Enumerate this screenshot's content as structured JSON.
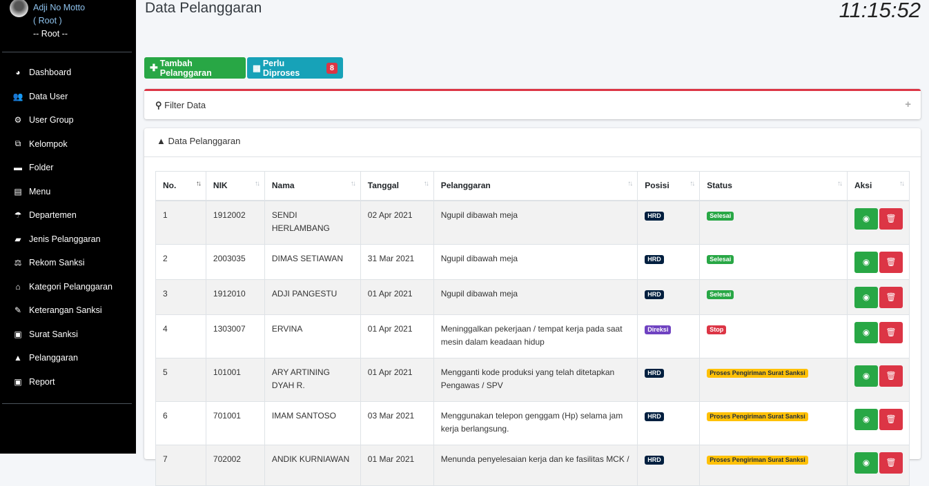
{
  "user": {
    "name": "Adji No Motto",
    "role": "( Root )",
    "group": "-- Root --"
  },
  "sidebar": {
    "items": [
      {
        "label": "Dashboard",
        "icon": "tachometer-icon",
        "glyph": "◕"
      },
      {
        "label": "Data User",
        "icon": "users-icon",
        "glyph": "👥"
      },
      {
        "label": "User Group",
        "icon": "gear-icon",
        "glyph": "⚙"
      },
      {
        "label": "Kelompok",
        "icon": "sitemap-icon",
        "glyph": "⧉"
      },
      {
        "label": "Folder",
        "icon": "folder-icon",
        "glyph": "▬"
      },
      {
        "label": "Menu",
        "icon": "menu-icon",
        "glyph": "▤"
      },
      {
        "label": "Departemen",
        "icon": "umbrella-icon",
        "glyph": "☂"
      },
      {
        "label": "Jenis Pelanggaran",
        "icon": "briefcase-icon",
        "glyph": "▰"
      },
      {
        "label": "Rekom Sanksi",
        "icon": "balance-scale-icon",
        "glyph": "⚖"
      },
      {
        "label": "Kategori Pelanggaran",
        "icon": "home-icon",
        "glyph": "⌂"
      },
      {
        "label": "Keterangan Sanksi",
        "icon": "edit-icon",
        "glyph": "✎"
      },
      {
        "label": "Surat Sanksi",
        "icon": "id-card-icon",
        "glyph": "▣"
      },
      {
        "label": "Pelanggaran",
        "icon": "warning-icon",
        "glyph": "▲"
      },
      {
        "label": "Report",
        "icon": "report-icon",
        "glyph": "▣"
      }
    ]
  },
  "header": {
    "title": "Data Pelanggaran",
    "clock": "11:15:52"
  },
  "toolbar": {
    "add_label": "Tambah Pelanggaran",
    "process_label": "Perlu Diproses",
    "process_count": "8"
  },
  "filter": {
    "title": "Filter Data"
  },
  "table": {
    "title": "Data Pelanggaran",
    "columns": [
      "No.",
      "NIK",
      "Nama",
      "Tanggal",
      "Pelanggaran",
      "Posisi",
      "Status",
      "Aksi"
    ],
    "rows": [
      {
        "no": "1",
        "nik": "1912002",
        "nama": "SENDI HERLAMBANG",
        "tanggal": "02 Apr 2021",
        "pelanggaran": "Ngupil dibawah meja",
        "posisi": "HRD",
        "status": "Selesai"
      },
      {
        "no": "2",
        "nik": "2003035",
        "nama": "DIMAS SETIAWAN",
        "tanggal": "31 Mar 2021",
        "pelanggaran": "Ngupil dibawah meja",
        "posisi": "HRD",
        "status": "Selesai"
      },
      {
        "no": "3",
        "nik": "1912010",
        "nama": "ADJI PANGESTU",
        "tanggal": "01 Apr 2021",
        "pelanggaran": "Ngupil dibawah meja",
        "posisi": "HRD",
        "status": "Selesai"
      },
      {
        "no": "4",
        "nik": "1303007",
        "nama": "ERVINA",
        "tanggal": "01 Apr 2021",
        "pelanggaran": "Meninggalkan pekerjaan / tempat kerja pada saat mesin dalam keadaan hidup",
        "posisi": "Direksi",
        "status": "Stop"
      },
      {
        "no": "5",
        "nik": "101001",
        "nama": "ARY ARTINING DYAH R.",
        "tanggal": "01 Apr 2021",
        "pelanggaran": "Mengganti kode produksi yang telah ditetapkan Pengawas / SPV",
        "posisi": "HRD",
        "status": "Proses Pengiriman Surat Sanksi"
      },
      {
        "no": "6",
        "nik": "701001",
        "nama": "IMAM SANTOSO",
        "tanggal": "03 Mar 2021",
        "pelanggaran": "Menggunakan telepon genggam (Hp) selama jam kerja berlangsung.",
        "posisi": "HRD",
        "status": "Proses Pengiriman Surat Sanksi"
      },
      {
        "no": "7",
        "nik": "702002",
        "nama": "ANDIK KURNIAWAN",
        "tanggal": "01 Mar 2021",
        "pelanggaran": "Menunda penyelesaian kerja dan ke fasilitas MCK /",
        "posisi": "HRD",
        "status": "Proses Pengiriman Surat Sanksi"
      }
    ]
  },
  "colors": {
    "posisi": {
      "HRD": "#001f3f",
      "Direksi": "#6f42c1"
    },
    "status": {
      "Selesai": "#28a745",
      "Stop": "#dc3545",
      "Proses Pengiriman Surat Sanksi": "#ffc107"
    }
  }
}
